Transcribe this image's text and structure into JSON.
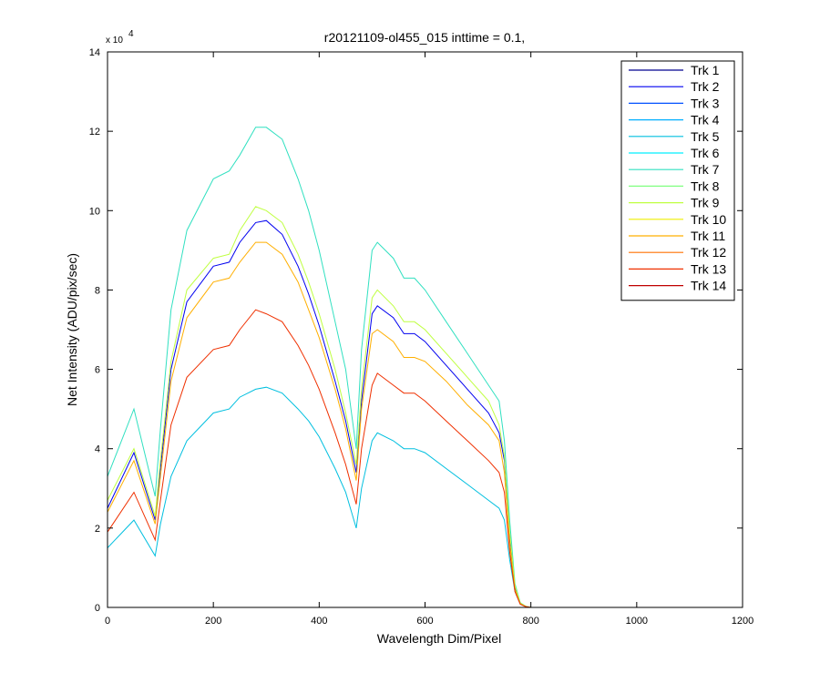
{
  "chart_data": {
    "type": "line",
    "title": "r20121109-ol455_015 inttime = 0.1,",
    "xlabel": "Wavelength Dim/Pixel",
    "ylabel": "Net Intensity (ADU/pix/sec)",
    "xlim": [
      0,
      1200
    ],
    "ylim": [
      0,
      140000
    ],
    "x_ticks": [
      "0",
      "200",
      "400",
      "600",
      "800",
      "1000",
      "1200"
    ],
    "y_ticks": [
      "0",
      "2",
      "4",
      "6",
      "8",
      "10",
      "12",
      "14"
    ],
    "y_tick_values": [
      0,
      20000,
      40000,
      60000,
      80000,
      100000,
      120000,
      140000
    ],
    "y_multiplier": {
      "base": "x 10",
      "exponent": "4"
    },
    "legend_position": "top-right",
    "grid": false,
    "series": [
      {
        "name": "Trk 1",
        "color": "#00008F",
        "x": [
          0,
          1024
        ],
        "values": [
          0,
          0
        ]
      },
      {
        "name": "Trk 2",
        "color": "#0000EF",
        "x": [
          0,
          50,
          90,
          100,
          120,
          150,
          200,
          230,
          250,
          280,
          300,
          330,
          360,
          380,
          400,
          430,
          450,
          470,
          480,
          500,
          510,
          540,
          560,
          580,
          600,
          640,
          680,
          720,
          740,
          750,
          760,
          770,
          780,
          790,
          800
        ],
        "values": [
          25000,
          39000,
          22000,
          35000,
          60000,
          77000,
          86000,
          87000,
          92000,
          97000,
          97500,
          94000,
          86000,
          79000,
          71000,
          57000,
          47000,
          34000,
          52000,
          74000,
          76000,
          73000,
          69000,
          69000,
          67000,
          61000,
          55000,
          49000,
          44000,
          37000,
          18000,
          5000,
          1000,
          300,
          0
        ]
      },
      {
        "name": "Trk 3",
        "color": "#0050FF",
        "x": [
          0,
          1024
        ],
        "values": [
          0,
          0
        ]
      },
      {
        "name": "Trk 4",
        "color": "#00AFFF",
        "x": [
          0,
          1024
        ],
        "values": [
          0,
          0
        ]
      },
      {
        "name": "Trk 5",
        "color": "#00BFDF",
        "x": [
          0,
          50,
          90,
          100,
          120,
          150,
          200,
          230,
          250,
          280,
          300,
          330,
          360,
          380,
          400,
          430,
          450,
          470,
          480,
          500,
          510,
          540,
          560,
          580,
          600,
          640,
          680,
          720,
          740,
          750,
          760,
          770,
          780,
          790,
          800
        ],
        "values": [
          15000,
          22000,
          13000,
          21000,
          33000,
          42000,
          49000,
          50000,
          53000,
          55000,
          55500,
          54000,
          50000,
          47000,
          43000,
          35000,
          29000,
          20000,
          30000,
          42000,
          44000,
          42000,
          40000,
          40000,
          39000,
          35000,
          31000,
          27000,
          25000,
          22000,
          12000,
          4000,
          800,
          200,
          0
        ]
      },
      {
        "name": "Trk 6",
        "color": "#00EFFF",
        "x": [
          0,
          1024
        ],
        "values": [
          0,
          0
        ]
      },
      {
        "name": "Trk 7",
        "color": "#30E0C0",
        "x": [
          0,
          50,
          90,
          100,
          120,
          150,
          200,
          230,
          250,
          280,
          300,
          330,
          360,
          380,
          400,
          430,
          450,
          470,
          480,
          500,
          510,
          540,
          560,
          580,
          600,
          640,
          680,
          720,
          740,
          750,
          760,
          770,
          780,
          790,
          800
        ],
        "values": [
          33000,
          50000,
          28000,
          45000,
          75000,
          95000,
          108000,
          110000,
          114000,
          121000,
          121000,
          118000,
          108000,
          100000,
          90000,
          72000,
          60000,
          40000,
          65000,
          90000,
          92000,
          88000,
          83000,
          83000,
          80000,
          72000,
          64000,
          56000,
          52000,
          42000,
          22000,
          6000,
          1200,
          300,
          0
        ]
      },
      {
        "name": "Trk 8",
        "color": "#80FF80",
        "x": [
          0,
          1024
        ],
        "values": [
          0,
          0
        ]
      },
      {
        "name": "Trk 9",
        "color": "#BFFF40",
        "x": [
          0,
          50,
          90,
          100,
          120,
          150,
          200,
          230,
          250,
          280,
          300,
          330,
          360,
          380,
          400,
          430,
          450,
          470,
          480,
          500,
          510,
          540,
          560,
          580,
          600,
          640,
          680,
          720,
          740,
          750,
          760,
          770,
          780,
          790,
          800
        ],
        "values": [
          27000,
          40000,
          23000,
          37000,
          62000,
          80000,
          88000,
          89000,
          95000,
          101000,
          100000,
          97000,
          89000,
          82000,
          74000,
          60000,
          49000,
          36000,
          55000,
          78000,
          80000,
          76000,
          72000,
          72000,
          70000,
          64000,
          58000,
          52000,
          46000,
          38000,
          19000,
          5500,
          1100,
          300,
          0
        ]
      },
      {
        "name": "Trk 10",
        "color": "#EFEF00",
        "x": [
          0,
          1024
        ],
        "values": [
          0,
          0
        ]
      },
      {
        "name": "Trk 11",
        "color": "#FFAF00",
        "x": [
          0,
          50,
          90,
          100,
          120,
          150,
          200,
          230,
          250,
          280,
          300,
          330,
          360,
          380,
          400,
          430,
          450,
          470,
          480,
          500,
          510,
          540,
          560,
          580,
          600,
          640,
          680,
          720,
          740,
          750,
          760,
          770,
          780,
          790,
          800
        ],
        "values": [
          24000,
          37000,
          21000,
          33000,
          57000,
          73000,
          82000,
          83000,
          87000,
          92000,
          92000,
          89000,
          82000,
          75000,
          68000,
          55000,
          45000,
          32000,
          50000,
          69000,
          70000,
          67000,
          63000,
          63000,
          62000,
          57000,
          51000,
          46000,
          42000,
          34000,
          16000,
          4500,
          900,
          200,
          0
        ]
      },
      {
        "name": "Trk 12",
        "color": "#FF7000",
        "x": [
          0,
          1024
        ],
        "values": [
          0,
          0
        ]
      },
      {
        "name": "Trk 13",
        "color": "#EF3000",
        "x": [
          0,
          50,
          90,
          100,
          120,
          150,
          200,
          230,
          250,
          280,
          300,
          330,
          360,
          380,
          400,
          430,
          450,
          470,
          480,
          500,
          510,
          540,
          560,
          580,
          600,
          640,
          680,
          720,
          740,
          750,
          760,
          770,
          780,
          790,
          800
        ],
        "values": [
          19000,
          29000,
          17000,
          27000,
          46000,
          58000,
          65000,
          66000,
          70000,
          75000,
          74000,
          72000,
          66000,
          61000,
          55000,
          44000,
          36000,
          26000,
          40000,
          56000,
          59000,
          56000,
          54000,
          54000,
          52000,
          47000,
          42000,
          37000,
          34000,
          29000,
          14000,
          4000,
          800,
          200,
          0
        ]
      },
      {
        "name": "Trk 14",
        "color": "#BF0000",
        "x": [
          0,
          1024
        ],
        "values": [
          0,
          0
        ]
      }
    ]
  }
}
